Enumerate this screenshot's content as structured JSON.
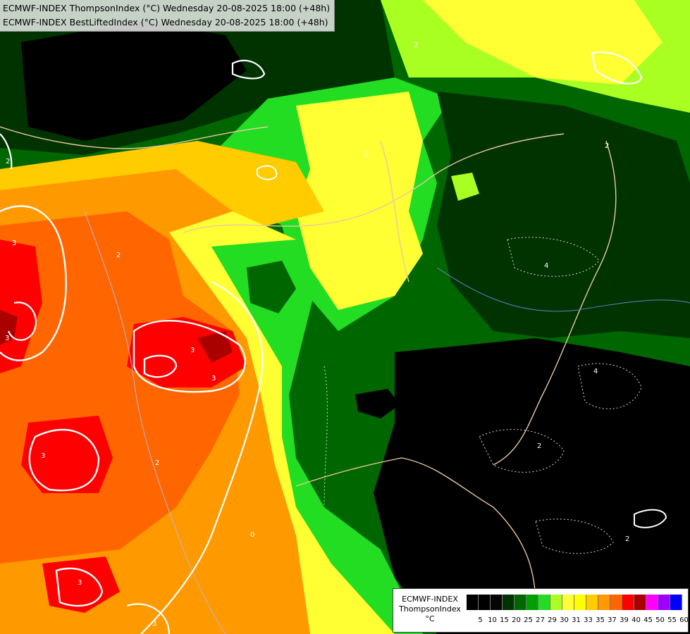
{
  "header": {
    "line1": "ECMWF-INDEX ThompsonIndex (°C) Wednesday 20-08-2025 18:00 (+48h)",
    "line2": "ECMWF-INDEX BestLiftedIndex (°C) Wednesday 20-08-2025 18:00 (+48h)"
  },
  "legend": {
    "label_line1": "ECMWF-INDEX",
    "label_line2": "ThompsonIndex",
    "label_line3": "°C",
    "ticks": [
      "5",
      "10",
      "15",
      "20",
      "25",
      "27",
      "29",
      "30",
      "31",
      "33",
      "35",
      "37",
      "39",
      "40",
      "45",
      "50",
      "55",
      "60"
    ],
    "colors": [
      "#000000",
      "#000000",
      "#050505",
      "#003300",
      "#006600",
      "#00a000",
      "#22dd22",
      "#aaff22",
      "#ffff33",
      "#ffff00",
      "#ffcc00",
      "#ff9900",
      "#ff6600",
      "#ff0000",
      "#aa0000",
      "#ff00ff",
      "#a000ff",
      "#0000ff"
    ]
  },
  "contour_labels": [
    "2",
    "2",
    "2",
    "3",
    "3",
    "3",
    "3",
    "3",
    "3",
    "2",
    "0",
    "4",
    "4",
    "2",
    "2",
    "2",
    "2",
    "3"
  ]
}
